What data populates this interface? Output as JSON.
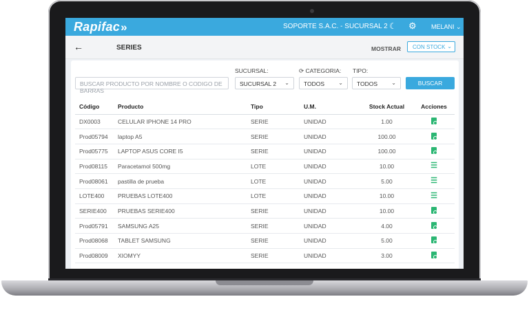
{
  "app": {
    "logo": "Rapifac",
    "company": "SOPORTE S.A.C. - SUCURSAL 2",
    "user": "MELANI"
  },
  "page": {
    "title": "SERIES",
    "mostrar_label": "MOSTRAR",
    "stock_filter": "CON STOCK"
  },
  "filters": {
    "search_placeholder": "BUSCAR PRODUCTO POR NOMBRE O CODIGO DE BARRAS",
    "sucursal_label": "SUCURSAL:",
    "sucursal_value": "SUCURSAL 2",
    "categoria_label": "CATEGORIA:",
    "categoria_value": "TODOS",
    "tipo_label": "TIPO:",
    "tipo_value": "TODOS",
    "buscar_label": "BUSCAR"
  },
  "table": {
    "headers": [
      "Código",
      "Producto",
      "Tipo",
      "U.M.",
      "Stock Actual",
      "Acciones"
    ],
    "rows": [
      {
        "codigo": "DX0003",
        "producto": "CELULAR IPHONE 14 PRO",
        "tipo": "SERIE",
        "um": "UNIDAD",
        "stock": "1.00",
        "accion": "doc-search-icon"
      },
      {
        "codigo": "Prod05794",
        "producto": "laptop A5",
        "tipo": "SERIE",
        "um": "UNIDAD",
        "stock": "100.00",
        "accion": "doc-search-icon"
      },
      {
        "codigo": "Prod05775",
        "producto": "LAPTOP ASUS CORE I5",
        "tipo": "SERIE",
        "um": "UNIDAD",
        "stock": "100.00",
        "accion": "doc-search-icon"
      },
      {
        "codigo": "Prod08115",
        "producto": "Paracetamol 500mg",
        "tipo": "LOTE",
        "um": "UNIDAD",
        "stock": "10.00",
        "accion": "list-icon"
      },
      {
        "codigo": "Prod08061",
        "producto": "pastilla de prueba",
        "tipo": "LOTE",
        "um": "UNIDAD",
        "stock": "5.00",
        "accion": "list-icon"
      },
      {
        "codigo": "LOTE400",
        "producto": "PRUEBAS LOTE400",
        "tipo": "LOTE",
        "um": "UNIDAD",
        "stock": "10.00",
        "accion": "list-icon"
      },
      {
        "codigo": "SERIE400",
        "producto": "PRUEBAS SERIE400",
        "tipo": "SERIE",
        "um": "UNIDAD",
        "stock": "10.00",
        "accion": "doc-search-icon"
      },
      {
        "codigo": "Prod05791",
        "producto": "SAMSUNG A25",
        "tipo": "SERIE",
        "um": "UNIDAD",
        "stock": "4.00",
        "accion": "doc-search-icon"
      },
      {
        "codigo": "Prod08068",
        "producto": "TABLET SAMSUNG",
        "tipo": "SERIE",
        "um": "UNIDAD",
        "stock": "5.00",
        "accion": "doc-search-icon"
      },
      {
        "codigo": "Prod08009",
        "producto": "XIOMYY",
        "tipo": "SERIE",
        "um": "UNIDAD",
        "stock": "3.00",
        "accion": "doc-search-icon"
      }
    ]
  },
  "colors": {
    "primary": "#3aa9de",
    "action": "#2bb673"
  }
}
